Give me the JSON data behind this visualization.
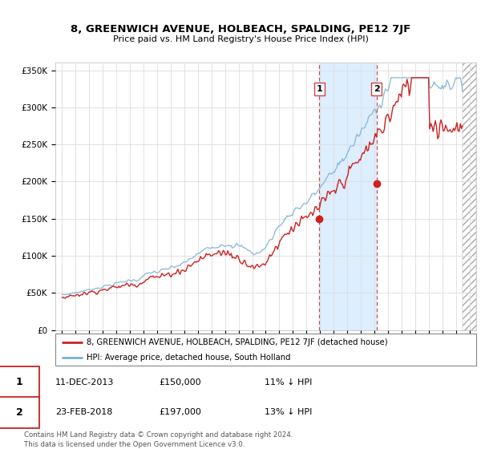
{
  "title": "8, GREENWICH AVENUE, HOLBEACH, SPALDING, PE12 7JF",
  "subtitle": "Price paid vs. HM Land Registry's House Price Index (HPI)",
  "background_color": "#ffffff",
  "plot_background": "#ffffff",
  "ylabel_ticks": [
    "£0",
    "£50K",
    "£100K",
    "£150K",
    "£200K",
    "£250K",
    "£300K",
    "£350K"
  ],
  "ytick_values": [
    0,
    50000,
    100000,
    150000,
    200000,
    250000,
    300000,
    350000
  ],
  "ylim": [
    0,
    360000
  ],
  "xlim_start": 1994.5,
  "xlim_end": 2025.5,
  "hatch_start": 2024.5,
  "sale1": {
    "date_num": 2013.94,
    "price": 150000,
    "label": "1"
  },
  "sale2": {
    "date_num": 2018.15,
    "price": 197000,
    "label": "2"
  },
  "hpi_color": "#7ab0d4",
  "price_color": "#cc2222",
  "highlight_color": "#ddeeff",
  "hatch_color": "#cccccc",
  "grid_color": "#dddddd",
  "legend_label_price": "8, GREENWICH AVENUE, HOLBEACH, SPALDING, PE12 7JF (detached house)",
  "legend_label_hpi": "HPI: Average price, detached house, South Holland",
  "footnote1": "Contains HM Land Registry data © Crown copyright and database right 2024.",
  "footnote2": "This data is licensed under the Open Government Licence v3.0.",
  "table_row1": [
    "1",
    "11-DEC-2013",
    "£150,000",
    "11% ↓ HPI"
  ],
  "table_row2": [
    "2",
    "23-FEB-2018",
    "£197,000",
    "13% ↓ HPI"
  ]
}
